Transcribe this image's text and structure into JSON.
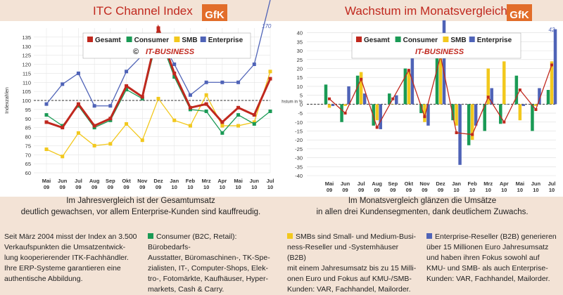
{
  "chart_data": [
    {
      "type": "line",
      "title": "ITC Channel Index",
      "ylabel": "Indexzahlen",
      "categories": [
        "Mai 09",
        "Jun 09",
        "Jul 09",
        "Aug 09",
        "Sep 09",
        "Okt 09",
        "Nov 09",
        "Dez 09",
        "Jan 10",
        "Feb 10",
        "Mrz 10",
        "Apr 10",
        "Mai 10",
        "Jun 10",
        "Jul 10"
      ],
      "ylim": [
        60,
        140
      ],
      "yticks": [
        60,
        65,
        70,
        75,
        80,
        85,
        90,
        95,
        100,
        105,
        110,
        115,
        120,
        125,
        130,
        135
      ],
      "reference_line": 100,
      "annotation": "170",
      "series": [
        {
          "name": "Gesamt",
          "color": "#c0281e",
          "values": [
            88,
            85,
            98,
            86,
            90,
            108,
            102,
            140,
            115,
            96,
            98,
            88,
            96,
            92,
            112
          ]
        },
        {
          "name": "Consumer",
          "color": "#1a9a55",
          "values": [
            92,
            86,
            97,
            85,
            89,
            106,
            101,
            137,
            113,
            95,
            94,
            82,
            92,
            87,
            94
          ]
        },
        {
          "name": "SMB",
          "color": "#f2c81d",
          "values": [
            73,
            69,
            82,
            75,
            76,
            87,
            78,
            101,
            89,
            86,
            103,
            86,
            86,
            88,
            116
          ]
        },
        {
          "name": "Enterprise",
          "color": "#4f63b7",
          "values": [
            98,
            109,
            115,
            97,
            97,
            116,
            125,
            136,
            120,
            103,
            110,
            110,
            110,
            120,
            170
          ]
        }
      ],
      "legend_brand": "IT-BUSINESS",
      "legend_copyright": "©"
    },
    {
      "type": "bar+line",
      "title": "Wachstum im Monatsvergleich",
      "ylabel": "Wachstum in %",
      "categories": [
        "Mai 09",
        "Jun 09",
        "Jul 09",
        "Aug 09",
        "Sep 09",
        "Okt 09",
        "Nov 09",
        "Dez 09",
        "Jan 10",
        "Feb 10",
        "Mrz 10",
        "Apr 10",
        "Mai 10",
        "Jun 10",
        "Jul 10"
      ],
      "ylim": [
        -40,
        45
      ],
      "yticks": [
        -40,
        -35,
        -30,
        -25,
        -20,
        -15,
        -10,
        -5,
        0,
        5,
        10,
        15,
        20,
        25,
        30,
        35,
        40
      ],
      "annotation": "42",
      "series": [
        {
          "name": "Consumer",
          "color": "#1a9a55",
          "values": [
            11,
            -10,
            16,
            -12,
            6,
            20,
            -5,
            27,
            -9,
            -23,
            -15,
            -11,
            16,
            -15,
            8
          ]
        },
        {
          "name": "SMB",
          "color": "#f2c81d",
          "values": [
            -2,
            -1,
            18,
            -9,
            0,
            19,
            -10,
            29,
            -12,
            -20,
            20,
            24,
            -9,
            -1,
            24
          ]
        },
        {
          "name": "Enterprise",
          "color": "#4f63b7",
          "values": [
            -1,
            10,
            6,
            -14,
            5,
            26,
            -12,
            47,
            -34,
            -12,
            9,
            0,
            -1,
            9,
            42
          ]
        },
        {
          "name": "Gesamt",
          "color": "#c0281e",
          "values": [
            3,
            -5,
            14,
            -13,
            3,
            19,
            -7,
            27,
            -16,
            -17,
            4,
            -10,
            8,
            -3,
            22
          ]
        }
      ],
      "legend_brand": "IT-BUSINESS"
    }
  ],
  "captions": {
    "left": [
      "Im Jahresvergleich ist der Gesamtumsatz",
      "deutlich gewachsen, vor allem Enterprise-Kunden sind kauffreudig."
    ],
    "right": [
      "Im Monatsvergleich glänzen die Umsätze",
      "in allen drei Kundensegmenten, dank deutlichem Zuwachs."
    ]
  },
  "logo": "GfK",
  "footer": {
    "col1": [
      "Seit März 2004 misst der Index an 3.500",
      "Verkaufspunkten die Umsatzentwick-",
      "lung kooperierender ITK-Fachhändler.",
      "Ihre ERP-Systeme garantieren eine",
      "authentische Abbildung."
    ],
    "col2": [
      "Consumer (B2C, Retail): Bürobedarfs-",
      "Ausstatter, Büromaschinen-, TK-Spe-",
      "zialisten, IT-, Computer-Shops, Elek-",
      "tro-, Fotomärkte, Kaufhäuser, Hyper-",
      "markets, Cash & Carry."
    ],
    "col3": [
      "SMBs sind Small- und Medium-Busi-",
      "ness-Reseller und -Systemhäuser (B2B)",
      "mit einem Jahresumsatz bis zu 15 Milli-",
      "onen Euro und Fokus auf KMU-/SMB-",
      "Kunden: VAR, Fachhandel, Mailorder."
    ],
    "col4": [
      "Enterprise-Reseller (B2B) generieren",
      "über 15 Millionen Euro Jahresumsatz",
      "und haben ihren Fokus sowohl auf",
      "KMU- und SMB- als auch Enterprise-",
      "Kunden: VAR, Fachhandel, Mailorder."
    ]
  },
  "colors": {
    "consumer": "#1a9a55",
    "smb": "#f2c81d",
    "enterprise": "#4f63b7",
    "gesamt": "#c0281e"
  }
}
